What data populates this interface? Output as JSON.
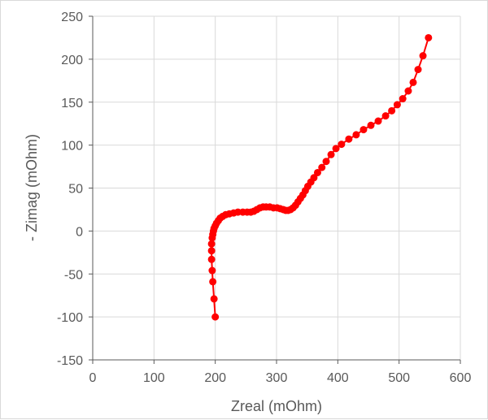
{
  "chart_data": {
    "type": "scatter",
    "title": "",
    "xlabel": "Zreal (mOhm)",
    "ylabel": "- Zimag (mOhm)",
    "xlim": [
      0,
      600
    ],
    "ylim": [
      -150,
      250
    ],
    "x_ticks": [
      "0",
      "100",
      "200",
      "300",
      "400",
      "500",
      "600"
    ],
    "y_ticks": [
      "250",
      "200",
      "150",
      "100",
      "50",
      "0",
      "-50",
      "-100",
      "-150"
    ],
    "grid": "vertical-and-horizontal",
    "colors": {
      "series": "#ff0000",
      "grid": "#d9d9d9",
      "axis": "#595959"
    },
    "series": [
      {
        "x": [
          200,
          198,
          196,
          195,
          194,
          194,
          194,
          195,
          196,
          197,
          198,
          200,
          202,
          205,
          208,
          212,
          217,
          223,
          230,
          237,
          245,
          252,
          258,
          263,
          268,
          273,
          278,
          283,
          289,
          295,
          301,
          306,
          311,
          315,
          319,
          323,
          327,
          331,
          335,
          339,
          343,
          347,
          351,
          356,
          361,
          367,
          374,
          381,
          389,
          397,
          406,
          418,
          430,
          442,
          454,
          466,
          478,
          488,
          497,
          506,
          515,
          523,
          531,
          539,
          548
        ],
        "y": [
          -100,
          -79,
          -59,
          -46,
          -33,
          -23,
          -15,
          -8,
          -4,
          0,
          3,
          6,
          9,
          12,
          15,
          17,
          19,
          20,
          21,
          22,
          22,
          22,
          22,
          23,
          25,
          27,
          28,
          28,
          28,
          27,
          27,
          26,
          25,
          24,
          24,
          25,
          27,
          30,
          34,
          38,
          42,
          47,
          52,
          57,
          62,
          68,
          74,
          81,
          89,
          96,
          101,
          107,
          112,
          118,
          123,
          128,
          134,
          140,
          147,
          154,
          163,
          173,
          188,
          204,
          225
        ]
      }
    ]
  }
}
